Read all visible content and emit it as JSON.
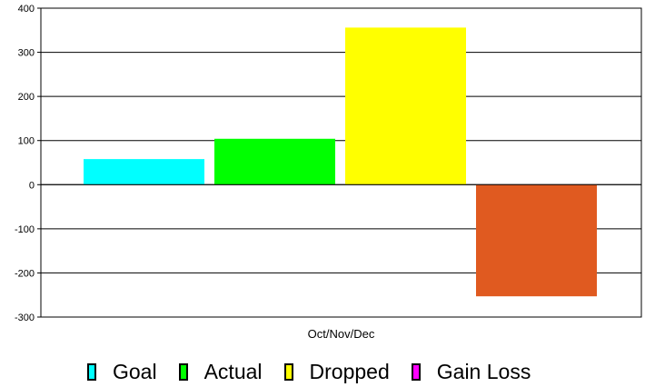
{
  "chart_data": {
    "type": "bar",
    "categories": [
      "Oct/Nov/Dec"
    ],
    "series": [
      {
        "name": "Goal",
        "values": [
          58
        ],
        "color": "#00ffff"
      },
      {
        "name": "Actual",
        "values": [
          104
        ],
        "color": "#00ff00"
      },
      {
        "name": "Dropped",
        "values": [
          356
        ],
        "color": "#ffff00"
      },
      {
        "name": "Gain Loss",
        "values": [
          -253
        ],
        "color": "#e05a20",
        "legend_color": "#ff00ff"
      }
    ],
    "y_ticks": [
      "400",
      "300",
      "200",
      "100",
      "0",
      "-100",
      "-200",
      "-300"
    ],
    "ylim": [
      -300,
      400
    ],
    "grid": true,
    "legend_position": "bottom"
  }
}
